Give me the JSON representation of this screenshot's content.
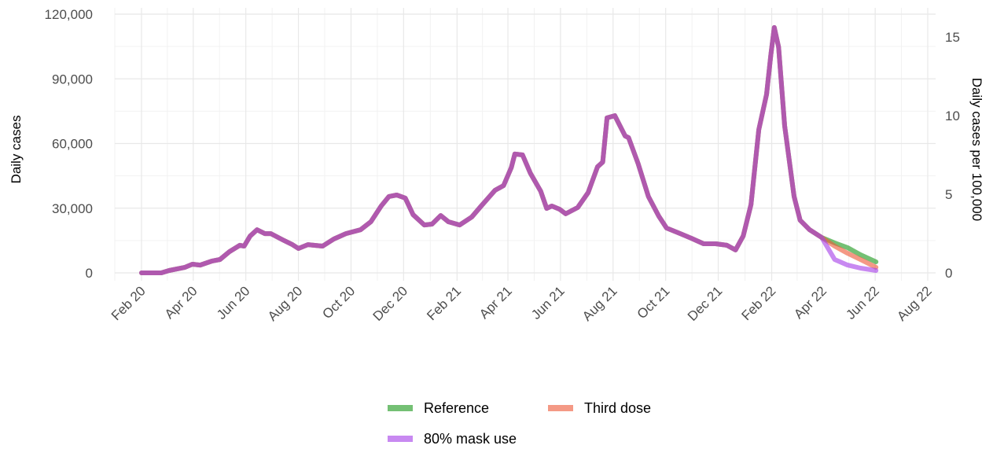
{
  "chart_data": {
    "type": "line",
    "y_label": "Daily cases",
    "y2_label": "Daily cases per 100,000",
    "x": [
      "2020-02-01",
      "2020-02-24",
      "2020-03-04",
      "2020-03-22",
      "2020-03-31",
      "2020-04-09",
      "2020-04-23",
      "2020-05-02",
      "2020-05-13",
      "2020-05-25",
      "2020-05-30",
      "2020-06-06",
      "2020-06-14",
      "2020-06-23",
      "2020-06-30",
      "2020-07-14",
      "2020-07-25",
      "2020-08-01",
      "2020-08-12",
      "2020-08-29",
      "2020-09-11",
      "2020-09-25",
      "2020-10-12",
      "2020-10-24",
      "2020-11-05",
      "2020-11-14",
      "2020-11-23",
      "2020-12-03",
      "2020-12-12",
      "2020-12-25",
      "2021-01-03",
      "2021-01-13",
      "2021-01-22",
      "2021-02-04",
      "2021-02-18",
      "2021-03-01",
      "2021-03-17",
      "2021-03-27",
      "2021-04-05",
      "2021-04-09",
      "2021-04-18",
      "2021-04-27",
      "2021-05-09",
      "2021-05-16",
      "2021-05-22",
      "2021-05-31",
      "2021-06-07",
      "2021-06-21",
      "2021-07-03",
      "2021-07-14",
      "2021-07-20",
      "2021-07-25",
      "2021-08-03",
      "2021-08-15",
      "2021-08-19",
      "2021-08-30",
      "2021-09-11",
      "2021-09-23",
      "2021-10-02",
      "2021-10-18",
      "2021-10-31",
      "2021-11-14",
      "2021-11-28",
      "2021-12-11",
      "2021-12-21",
      "2021-12-30",
      "2022-01-08",
      "2022-01-17",
      "2022-01-26",
      "2022-01-31",
      "2022-02-04",
      "2022-02-09",
      "2022-02-16",
      "2022-02-27",
      "2022-03-06",
      "2022-03-17",
      "2022-03-31",
      "2022-04-15",
      "2022-04-30",
      "2022-05-15",
      "2022-06-02"
    ],
    "series": [
      {
        "name": "Reference",
        "color": "#1f9a1f",
        "values": [
          0,
          0,
          1100,
          2500,
          4000,
          3600,
          5500,
          6200,
          9800,
          12800,
          12400,
          17100,
          20000,
          18200,
          18200,
          15300,
          13100,
          11300,
          13100,
          12400,
          15700,
          18200,
          20000,
          23700,
          31000,
          35400,
          36100,
          34700,
          27000,
          22200,
          22600,
          26600,
          23700,
          22200,
          25900,
          31000,
          38300,
          40500,
          48900,
          55100,
          54700,
          46300,
          37900,
          29900,
          31000,
          29500,
          27400,
          30300,
          37200,
          49200,
          51400,
          71900,
          72900,
          63500,
          62700,
          50700,
          35400,
          26300,
          20800,
          18200,
          16000,
          13500,
          13500,
          12800,
          10600,
          17100,
          31700,
          66400,
          82800,
          101000,
          113800,
          104700,
          68200,
          35400,
          24400,
          20000,
          16400,
          13900,
          11700,
          8400,
          5100
        ]
      },
      {
        "name": "Third dose",
        "color": "#ee5a3a",
        "values": [
          0,
          0,
          1100,
          2500,
          4000,
          3600,
          5500,
          6200,
          9800,
          12800,
          12400,
          17100,
          20000,
          18200,
          18200,
          15300,
          13100,
          11300,
          13100,
          12400,
          15700,
          18200,
          20000,
          23700,
          31000,
          35400,
          36100,
          34700,
          27000,
          22200,
          22600,
          26600,
          23700,
          22200,
          25900,
          31000,
          38300,
          40500,
          48900,
          55100,
          54700,
          46300,
          37900,
          29900,
          31000,
          29500,
          27400,
          30300,
          37200,
          49200,
          51400,
          71900,
          72900,
          63500,
          62700,
          50700,
          35400,
          26300,
          20800,
          18200,
          16000,
          13500,
          13500,
          12800,
          10600,
          17100,
          31700,
          66400,
          82800,
          101000,
          113800,
          104700,
          68200,
          35400,
          24400,
          20000,
          16400,
          12400,
          9100,
          6200,
          2600
        ]
      },
      {
        "name": "80% mask use",
        "color": "#a640e8",
        "values": [
          0,
          0,
          1100,
          2500,
          4000,
          3600,
          5500,
          6200,
          9800,
          12800,
          12400,
          17100,
          20000,
          18200,
          18200,
          15300,
          13100,
          11300,
          13100,
          12400,
          15700,
          18200,
          20000,
          23700,
          31000,
          35400,
          36100,
          34700,
          27000,
          22200,
          22600,
          26600,
          23700,
          22200,
          25900,
          31000,
          38300,
          40500,
          48900,
          55100,
          54700,
          46300,
          37900,
          29900,
          31000,
          29500,
          27400,
          30300,
          37200,
          49200,
          51400,
          71900,
          72900,
          63500,
          62700,
          50700,
          35400,
          26300,
          20800,
          18200,
          16000,
          13500,
          13500,
          12800,
          10600,
          17100,
          31700,
          66400,
          82800,
          101000,
          113800,
          104700,
          68200,
          35400,
          24400,
          20000,
          16400,
          6200,
          3600,
          2200,
          1100
        ]
      }
    ],
    "xlim": [
      "2020-01",
      "2022-08"
    ],
    "xticks": [
      {
        "value": "2020-02",
        "label": "Feb 20"
      },
      {
        "value": "2020-04",
        "label": "Apr 20"
      },
      {
        "value": "2020-06",
        "label": "Jun 20"
      },
      {
        "value": "2020-08",
        "label": "Aug 20"
      },
      {
        "value": "2020-10",
        "label": "Oct 20"
      },
      {
        "value": "2020-12",
        "label": "Dec 20"
      },
      {
        "value": "2021-02",
        "label": "Feb 21"
      },
      {
        "value": "2021-04",
        "label": "Apr 21"
      },
      {
        "value": "2021-06",
        "label": "Jun 21"
      },
      {
        "value": "2021-08",
        "label": "Aug 21"
      },
      {
        "value": "2021-10",
        "label": "Oct 21"
      },
      {
        "value": "2021-12",
        "label": "Dec 21"
      },
      {
        "value": "2022-02",
        "label": "Feb 22"
      },
      {
        "value": "2022-04",
        "label": "Apr 22"
      },
      {
        "value": "2022-06",
        "label": "Jun 22"
      },
      {
        "value": "2022-08",
        "label": "Aug 22"
      }
    ],
    "ylim": [
      0,
      120000
    ],
    "yticks": [
      0,
      {
        "value": 30000,
        "label": "30,000"
      },
      {
        "value": 60000,
        "label": "60,000"
      },
      {
        "value": 90000,
        "label": "90,000"
      },
      {
        "value": 120000,
        "label": "120,000"
      }
    ],
    "y2lim": [
      0,
      16.45
    ],
    "y2ticks": [
      0,
      5,
      10,
      15
    ],
    "grid": true,
    "legend": "bottom"
  }
}
